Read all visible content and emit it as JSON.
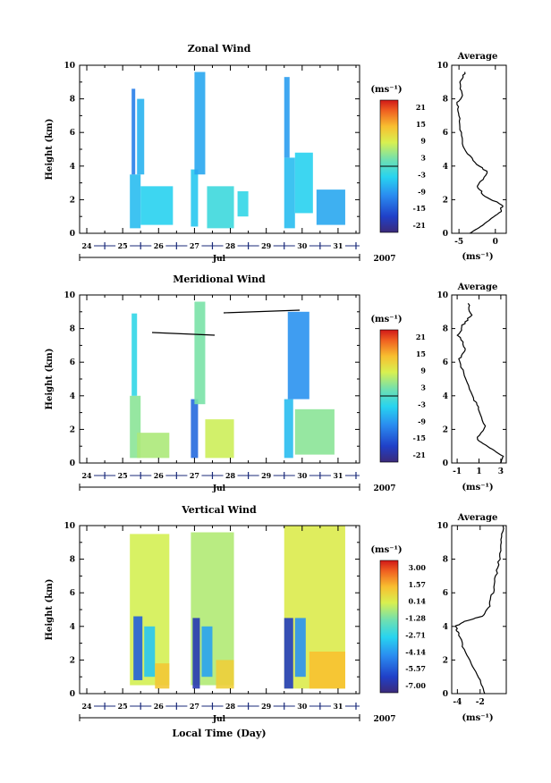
{
  "chart_data": [
    {
      "type": "heatmap",
      "title": "Zonal Wind",
      "ylabel": "Height (km)",
      "ylim": [
        0,
        10
      ],
      "yticks": [
        "0",
        "2",
        "4",
        "6",
        "8",
        "10"
      ],
      "day_ticks": [
        "24",
        "25",
        "26",
        "27",
        "28",
        "29",
        "30",
        "31"
      ],
      "month_label": "Jul",
      "year_label": "2007",
      "colorbar": {
        "unit": "(ms⁻¹)",
        "labels": [
          "21",
          "15",
          "9",
          "3",
          "-3",
          "-9",
          "-15",
          "-21"
        ],
        "range": [
          -24,
          24
        ]
      },
      "patches": [
        {
          "x0": 25.2,
          "x1": 25.5,
          "y0": 0.3,
          "y1": 3.5,
          "v": -6
        },
        {
          "x0": 25.25,
          "x1": 25.35,
          "y0": 3.5,
          "y1": 8.6,
          "v": -12
        },
        {
          "x0": 25.5,
          "x1": 26.4,
          "y0": 0.5,
          "y1": 2.8,
          "v": -4
        },
        {
          "x0": 25.4,
          "x1": 25.6,
          "y0": 3.5,
          "y1": 8.0,
          "v": -7
        },
        {
          "x0": 26.9,
          "x1": 27.1,
          "y0": 0.4,
          "y1": 3.8,
          "v": -5
        },
        {
          "x0": 27.0,
          "x1": 27.3,
          "y0": 3.5,
          "y1": 9.6,
          "v": -8
        },
        {
          "x0": 27.35,
          "x1": 28.1,
          "y0": 0.3,
          "y1": 2.8,
          "v": -2
        },
        {
          "x0": 28.2,
          "x1": 28.5,
          "y0": 1.0,
          "y1": 2.5,
          "v": -3
        },
        {
          "x0": 29.5,
          "x1": 29.8,
          "y0": 0.3,
          "y1": 4.5,
          "v": -6
        },
        {
          "x0": 29.5,
          "x1": 29.65,
          "y0": 4.5,
          "y1": 9.3,
          "v": -9
        },
        {
          "x0": 29.8,
          "x1": 30.3,
          "y0": 1.2,
          "y1": 4.8,
          "v": -4
        },
        {
          "x0": 30.4,
          "x1": 31.2,
          "y0": 0.5,
          "y1": 2.6,
          "v": -8
        }
      ],
      "average": {
        "title": "Average",
        "xlabel": "(ms⁻¹)",
        "xlim": [
          -6,
          1.5
        ],
        "xticks": [
          "-5",
          "0"
        ],
        "points": [
          [
            -3.5,
            0.0
          ],
          [
            -2.0,
            0.4
          ],
          [
            -0.8,
            0.8
          ],
          [
            0.8,
            1.3
          ],
          [
            0.9,
            1.7
          ],
          [
            -1.5,
            2.2
          ],
          [
            -2.5,
            2.8
          ],
          [
            -1.0,
            3.6
          ],
          [
            -2.8,
            4.2
          ],
          [
            -4.2,
            5.0
          ],
          [
            -4.8,
            6.0
          ],
          [
            -5.0,
            7.0
          ],
          [
            -5.2,
            7.8
          ],
          [
            -4.6,
            8.2
          ],
          [
            -4.8,
            9.0
          ],
          [
            -4.2,
            9.6
          ]
        ]
      }
    },
    {
      "type": "heatmap",
      "title": "Meridional Wind",
      "ylabel": "Height (km)",
      "ylim": [
        0,
        10
      ],
      "yticks": [
        "0",
        "2",
        "4",
        "6",
        "8",
        "10"
      ],
      "day_ticks": [
        "24",
        "25",
        "26",
        "27",
        "28",
        "29",
        "30",
        "31"
      ],
      "month_label": "Jul",
      "year_label": "2007",
      "colorbar": {
        "unit": "(ms⁻¹)",
        "labels": [
          "21",
          "15",
          "9",
          "3",
          "-3",
          "-9",
          "-15",
          "-21"
        ],
        "range": [
          -24,
          24
        ]
      },
      "patches": [
        {
          "x0": 25.2,
          "x1": 25.5,
          "y0": 0.3,
          "y1": 4.0,
          "v": 4
        },
        {
          "x0": 25.25,
          "x1": 25.4,
          "y0": 4.0,
          "y1": 8.9,
          "v": -3
        },
        {
          "x0": 25.4,
          "x1": 26.3,
          "y0": 0.3,
          "y1": 1.8,
          "v": 6
        },
        {
          "x0": 26.9,
          "x1": 27.1,
          "y0": 0.3,
          "y1": 3.8,
          "v": -14
        },
        {
          "x0": 27.0,
          "x1": 27.3,
          "y0": 3.5,
          "y1": 9.6,
          "v": 3
        },
        {
          "x0": 27.3,
          "x1": 28.1,
          "y0": 0.3,
          "y1": 2.6,
          "v": 8
        },
        {
          "x0": 29.5,
          "x1": 29.75,
          "y0": 0.3,
          "y1": 3.8,
          "v": -6
        },
        {
          "x0": 29.6,
          "x1": 30.2,
          "y0": 3.8,
          "y1": 9.0,
          "v": -10
        },
        {
          "x0": 29.8,
          "x1": 30.9,
          "y0": 0.5,
          "y1": 3.2,
          "v": 4
        }
      ],
      "average": {
        "title": "Average",
        "xlabel": "(ms⁻¹)",
        "xlim": [
          -1.5,
          3.5
        ],
        "xticks": [
          "-1",
          "1",
          "3"
        ],
        "points": [
          [
            3.0,
            0.0
          ],
          [
            3.2,
            0.4
          ],
          [
            2.0,
            0.9
          ],
          [
            0.8,
            1.4
          ],
          [
            1.6,
            2.2
          ],
          [
            1.0,
            3.2
          ],
          [
            0.4,
            4.0
          ],
          [
            -0.4,
            5.2
          ],
          [
            -0.8,
            6.2
          ],
          [
            -0.2,
            6.8
          ],
          [
            -0.9,
            7.6
          ],
          [
            -0.5,
            8.2
          ],
          [
            0.3,
            8.8
          ],
          [
            0.0,
            9.5
          ]
        ]
      }
    },
    {
      "type": "heatmap",
      "title": "Vertical Wind",
      "xlabel": "Local Time (Day)",
      "ylabel": "Height (km)",
      "ylim": [
        0,
        10
      ],
      "yticks": [
        "0",
        "2",
        "4",
        "6",
        "8",
        "10"
      ],
      "day_ticks": [
        "24",
        "25",
        "26",
        "27",
        "28",
        "29",
        "30",
        "31"
      ],
      "month_label": "Jul",
      "year_label": "2007",
      "colorbar": {
        "unit": "(ms⁻¹)",
        "labels": [
          "3.00",
          "1.57",
          "0.14",
          "-1.28",
          "-2.71",
          "-4.14",
          "-5.57",
          "-7.00"
        ],
        "range": [
          -7.7,
          3.7
        ]
      },
      "patches": [
        {
          "x0": 25.2,
          "x1": 26.3,
          "y0": 0.5,
          "y1": 9.5,
          "v": 0.0
        },
        {
          "x0": 25.3,
          "x1": 25.55,
          "y0": 0.8,
          "y1": 4.6,
          "v": -5.6
        },
        {
          "x0": 25.6,
          "x1": 25.9,
          "y0": 1.0,
          "y1": 4.0,
          "v": -3.2
        },
        {
          "x0": 25.9,
          "x1": 26.3,
          "y0": 0.3,
          "y1": 1.8,
          "v": 1.2
        },
        {
          "x0": 26.9,
          "x1": 28.1,
          "y0": 0.5,
          "y1": 9.6,
          "v": -0.5
        },
        {
          "x0": 26.95,
          "x1": 27.15,
          "y0": 0.3,
          "y1": 4.5,
          "v": -6.7
        },
        {
          "x0": 27.2,
          "x1": 27.5,
          "y0": 1.0,
          "y1": 4.0,
          "v": -4.0
        },
        {
          "x0": 27.6,
          "x1": 28.1,
          "y0": 0.3,
          "y1": 2.0,
          "v": 1.0
        },
        {
          "x0": 29.5,
          "x1": 31.2,
          "y0": 0.3,
          "y1": 10.0,
          "v": 0.2
        },
        {
          "x0": 29.5,
          "x1": 29.75,
          "y0": 0.3,
          "y1": 4.5,
          "v": -6.5
        },
        {
          "x0": 29.8,
          "x1": 30.1,
          "y0": 1.0,
          "y1": 4.5,
          "v": -4.4
        },
        {
          "x0": 30.2,
          "x1": 31.2,
          "y0": 0.3,
          "y1": 2.5,
          "v": 1.4
        }
      ],
      "average": {
        "title": "Average",
        "xlabel": "(ms⁻¹)",
        "xlim": [
          -4.5,
          0.3
        ],
        "xticks": [
          "-4",
          "-2"
        ],
        "points": [
          [
            -1.6,
            0.0
          ],
          [
            -2.0,
            0.8
          ],
          [
            -2.8,
            1.8
          ],
          [
            -3.5,
            2.8
          ],
          [
            -3.9,
            3.6
          ],
          [
            -4.2,
            4.0
          ],
          [
            -3.4,
            4.3
          ],
          [
            -1.8,
            4.6
          ],
          [
            -1.2,
            5.2
          ],
          [
            -0.9,
            6.0
          ],
          [
            -0.6,
            7.0
          ],
          [
            -0.3,
            8.0
          ],
          [
            -0.1,
            9.0
          ],
          [
            0.0,
            10.0
          ]
        ]
      }
    }
  ]
}
